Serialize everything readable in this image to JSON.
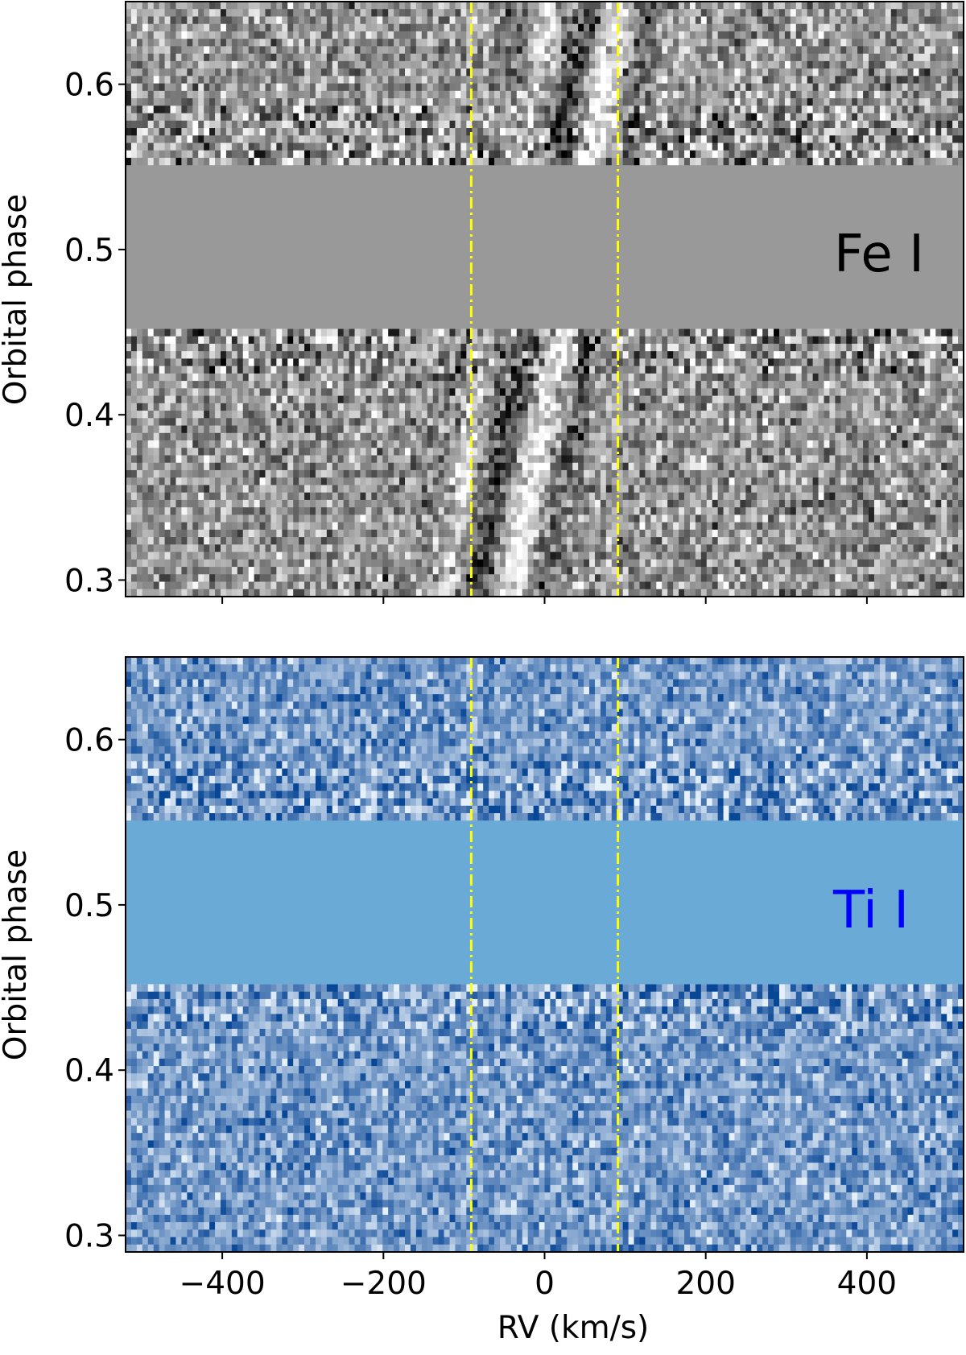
{
  "chart_data": [
    {
      "type": "heatmap",
      "panel": "top",
      "colormap": "gray",
      "label": "Fe I",
      "label_color": "#000000",
      "ylabel": "Orbital phase",
      "xlabel": "",
      "xlim": [
        -520,
        520
      ],
      "ylim": [
        0.29,
        0.65
      ],
      "yticks": [
        0.3,
        0.4,
        0.5,
        0.6
      ],
      "ytick_labels": [
        "0.3",
        "0.4",
        "0.5",
        "0.6"
      ],
      "xticks": [
        -400,
        -200,
        0,
        200,
        400
      ],
      "xtick_labels": [],
      "masked_phase_range": [
        0.452,
        0.551
      ],
      "masked_color": "#999999",
      "signal": "dark/bright diagonal trail between about -80 and +90 km/s, drifting from negative RV at phase 0.30 to positive RV at phase 0.65",
      "vlines": {
        "x": [
          -91,
          91
        ],
        "style": "dash-dot",
        "color": "#ffff00"
      }
    },
    {
      "type": "heatmap",
      "panel": "bottom",
      "colormap": "blues",
      "label": "Ti I",
      "label_color": "#0000ff",
      "ylabel": "Orbital phase",
      "xlabel": "RV (km/s)",
      "xlim": [
        -520,
        520
      ],
      "ylim": [
        0.29,
        0.65
      ],
      "yticks": [
        0.3,
        0.4,
        0.5,
        0.6
      ],
      "ytick_labels": [
        "0.3",
        "0.4",
        "0.5",
        "0.6"
      ],
      "xticks": [
        -400,
        -200,
        0,
        200,
        400
      ],
      "xtick_labels": [
        "−400",
        "−200",
        "0",
        "200",
        "400"
      ],
      "masked_phase_range": [
        0.452,
        0.551
      ],
      "masked_color": "#6aaad6",
      "signal": "no trail, noise only",
      "vlines": {
        "x": [
          -91,
          91
        ],
        "style": "dash-dot",
        "color": "#ffff00"
      }
    }
  ]
}
